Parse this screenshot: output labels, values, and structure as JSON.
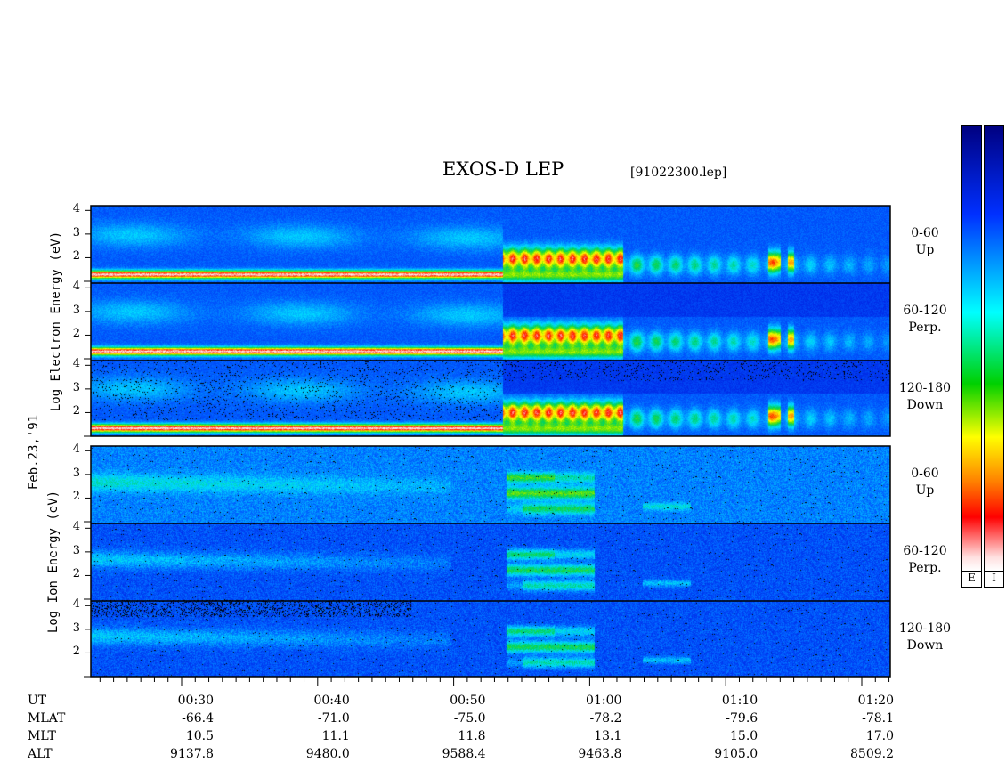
{
  "title": "EXOS-D LEP",
  "filename": "[91022300.lep]",
  "date_label": "Feb.23,'91",
  "electron_ylabel": "Log   Electron   Energy  (eV)",
  "ion_ylabel": "Log    Ion   Energy  (eV)",
  "colorbar": {
    "labels": [
      "E",
      "I"
    ]
  },
  "chart_data": {
    "type": "heatmap",
    "panels": [
      {
        "species": "Electron",
        "channel": "0-60",
        "direction": "Up"
      },
      {
        "species": "Electron",
        "channel": "60-120",
        "direction": "Perp."
      },
      {
        "species": "Electron",
        "channel": "120-180",
        "direction": "Down"
      },
      {
        "species": "Ion",
        "channel": "0-60",
        "direction": "Up"
      },
      {
        "species": "Ion",
        "channel": "60-120",
        "direction": "Perp."
      },
      {
        "species": "Ion",
        "channel": "120-180",
        "direction": "Down"
      }
    ],
    "y_ticks": [
      "4",
      "3",
      "2"
    ],
    "ylim": [
      1,
      4.2
    ],
    "x_time_range": [
      "00:23",
      "01:22"
    ],
    "x_ticks": [
      "00:30",
      "00:40",
      "00:50",
      "01:00",
      "01:10",
      "01:20"
    ],
    "table": {
      "row_labels": [
        "UT",
        "MLAT",
        "MLT",
        "ALT"
      ],
      "columns": [
        {
          "UT": "00:30",
          "MLAT": "-66.4",
          "MLT": "10.5",
          "ALT": "9137.8"
        },
        {
          "UT": "00:40",
          "MLAT": "-71.0",
          "MLT": "11.1",
          "ALT": "9480.0"
        },
        {
          "UT": "00:50",
          "MLAT": "-75.0",
          "MLT": "11.8",
          "ALT": "9588.4"
        },
        {
          "UT": "01:00",
          "MLAT": "-78.2",
          "MLT": "13.1",
          "ALT": "9463.8"
        },
        {
          "UT": "01:10",
          "MLAT": "-79.6",
          "MLT": "15.0",
          "ALT": "9105.0"
        },
        {
          "UT": "01:20",
          "MLAT": "-78.1",
          "MLT": "17.0",
          "ALT": "8509.2"
        }
      ]
    },
    "colormap": [
      "#ffffff",
      "#ff0000",
      "#ff8000",
      "#ffff00",
      "#00e000",
      "#00ffff",
      "#0060ff",
      "#000090"
    ]
  }
}
